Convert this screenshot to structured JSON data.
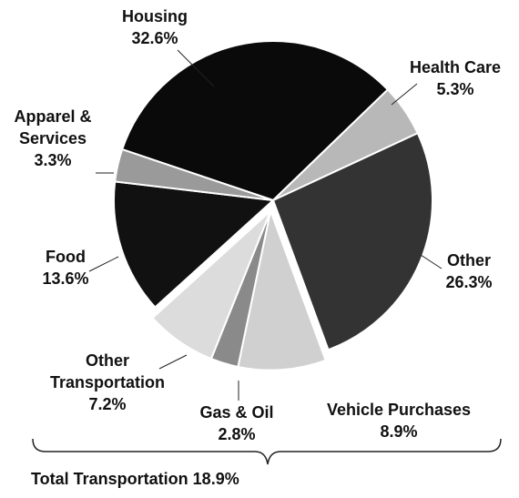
{
  "chart_data": {
    "type": "pie",
    "categories": [
      "Housing",
      "Health Care",
      "Other",
      "Vehicle Purchases",
      "Gas & Oil",
      "Other Transportation",
      "Food",
      "Apparel & Services"
    ],
    "values": [
      32.6,
      5.3,
      26.3,
      8.9,
      2.8,
      7.2,
      13.6,
      3.3
    ],
    "value_labels": [
      "32.6%",
      "5.3%",
      "26.3%",
      "8.9%",
      "2.8%",
      "7.2%",
      "13.6%",
      "3.3%"
    ],
    "colors": [
      "#0a0a0a",
      "#b8b8b8",
      "#333333",
      "#d0d0d0",
      "#8a8a8a",
      "#dcdcdc",
      "#111111",
      "#9a9a9a"
    ],
    "annotation": "Total Transportation 18.9%"
  }
}
